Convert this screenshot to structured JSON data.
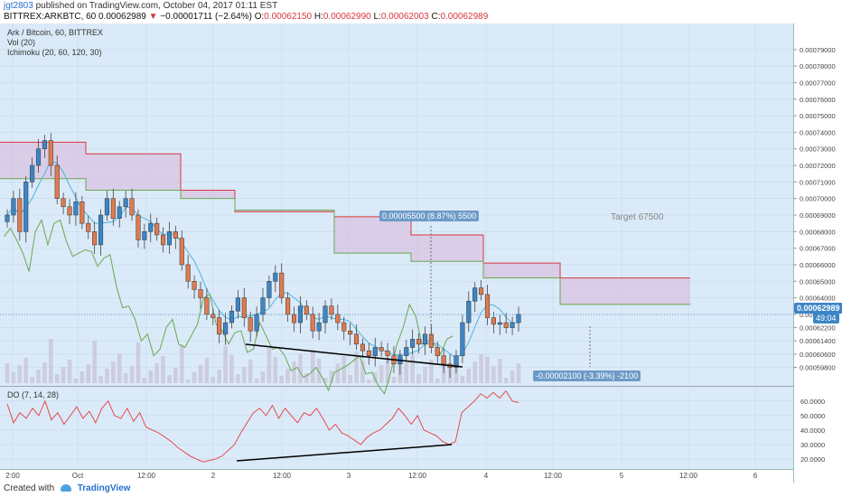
{
  "header": {
    "author": "jgt2803",
    "published": "published on TradingView.com, October 04, 2017 01:11 EST",
    "symbol": "BITTREX:ARKBTC, 60",
    "last": "0.00062989",
    "change_arrow": "▼",
    "change": "−0.00001711 (−2.64%)",
    "o_label": "O:",
    "o": "0.00062150",
    "h_label": "H:",
    "h": "0.00062990",
    "l_label": "L:",
    "l": "0.00062003",
    "c_label": "C:",
    "c": "0.00062989"
  },
  "legend": {
    "title": "Ark / Bitcoin, 60, BITTREX",
    "vol": "Vol (20)",
    "ichimoku": "Ichimoku (20, 60, 120, 30)",
    "dmi": "DO (7, 14, 28)"
  },
  "price_labels": {
    "current": "0.00062989",
    "countdown": "49:04",
    "measure_up": "0.00005500 (8.87%) 5500",
    "measure_down": "-0.00002100 (-3.39%) -2100",
    "target": "Target 67500"
  },
  "footer": {
    "created_with": "Created with",
    "brand": "TradingView"
  },
  "colors": {
    "bull": "#3d85c6",
    "bear": "#e07a4f",
    "cloud": "#d8b4d8",
    "kijun": "#d9363e",
    "tenkan": "#4fb3e0",
    "chikou": "#6aa84f",
    "osc": "#e83b3b",
    "bg": "#daeaf8",
    "axis_bg": "#ffffff"
  },
  "chart_data": {
    "type": "candlestick",
    "title": "Ark / Bitcoin, 60, BITTREX",
    "y_ticks": [
      "0.00079000",
      "0.00078000",
      "0.00077000",
      "0.00076000",
      "0.00075000",
      "0.00074000",
      "0.00073000",
      "0.00072000",
      "0.00071000",
      "0.00070000",
      "0.00069000",
      "0.00068000",
      "0.00067000",
      "0.00066000",
      "0.00065000",
      "0.00064000",
      "0.00063000",
      "0.00062200",
      "0.00061400",
      "0.00060600",
      "0.00059800"
    ],
    "x_ticks": [
      "2:00",
      "Oct",
      "12:00",
      "2",
      "12:00",
      "3",
      "12:00",
      "4",
      "12:00",
      "5",
      "12:00",
      "6"
    ],
    "ylim": [
      0.000595,
      0.000797
    ],
    "closes": [
      0.00069,
      0.0007,
      0.00068,
      0.00071,
      0.00072,
      0.00073,
      0.000735,
      0.00072,
      0.0007,
      0.000695,
      0.00069,
      0.000698,
      0.000685,
      0.00068,
      0.000672,
      0.00069,
      0.0007,
      0.000688,
      0.000695,
      0.0007,
      0.00069,
      0.000675,
      0.00068,
      0.000685,
      0.000678,
      0.000672,
      0.00068,
      0.000676,
      0.00066,
      0.00065,
      0.000645,
      0.00064,
      0.00063,
      0.000628,
      0.000618,
      0.000625,
      0.000632,
      0.00064,
      0.000628,
      0.00062,
      0.00063,
      0.00064,
      0.00065,
      0.000655,
      0.00064,
      0.00063,
      0.000625,
      0.000635,
      0.00063,
      0.00062,
      0.000625,
      0.000635,
      0.00063,
      0.000625,
      0.00062,
      0.000618,
      0.000612,
      0.000608,
      0.000605,
      0.00061,
      0.000608,
      0.000605,
      0.0006,
      0.000605,
      0.00061,
      0.000615,
      0.000612,
      0.000618,
      0.00061,
      0.000605,
      0.0006,
      0.000598,
      0.000605,
      0.000625,
      0.000638,
      0.000646,
      0.000642,
      0.000628,
      0.000624,
      0.000625,
      0.000622,
      0.000625,
      0.00063
    ],
    "ichimoku": {
      "kijun_levels": [
        0.000734,
        0.000727,
        0.000705,
        0.000692,
        0.000689,
        0.000678,
        0.000661,
        0.000652
      ],
      "span_a_levels": [
        0.000712,
        0.000705,
        0.0007,
        0.000693,
        0.000667,
        0.000662,
        0.000652,
        0.000636
      ],
      "target": 0.000675
    },
    "measurements": [
      {
        "label": "0.00005500 (8.87%) 5500",
        "delta": 5.5e-05
      },
      {
        "label": "-0.00002100 (-3.39%) -2100",
        "delta": -2.1e-05
      }
    ],
    "oscillator": {
      "name": "DO (7, 14, 28)",
      "y_ticks": [
        "60.0000",
        "50.0000",
        "40.0000",
        "30.0000",
        "20.0000"
      ],
      "ylim": [
        15,
        68
      ],
      "values": [
        58,
        45,
        52,
        48,
        55,
        50,
        60,
        47,
        52,
        44,
        50,
        56,
        48,
        53,
        45,
        55,
        60,
        50,
        48,
        55,
        46,
        52,
        42,
        40,
        38,
        35,
        32,
        28,
        25,
        22,
        20,
        18,
        19,
        20,
        22,
        26,
        30,
        38,
        45,
        52,
        55,
        50,
        57,
        48,
        55,
        50,
        45,
        52,
        50,
        55,
        48,
        40,
        44,
        38,
        36,
        33,
        30,
        35,
        38,
        40,
        44,
        48,
        55,
        50,
        44,
        50,
        40,
        38,
        36,
        32,
        30,
        32,
        52,
        56,
        60,
        65,
        62,
        66,
        62,
        67,
        60,
        59
      ]
    }
  }
}
